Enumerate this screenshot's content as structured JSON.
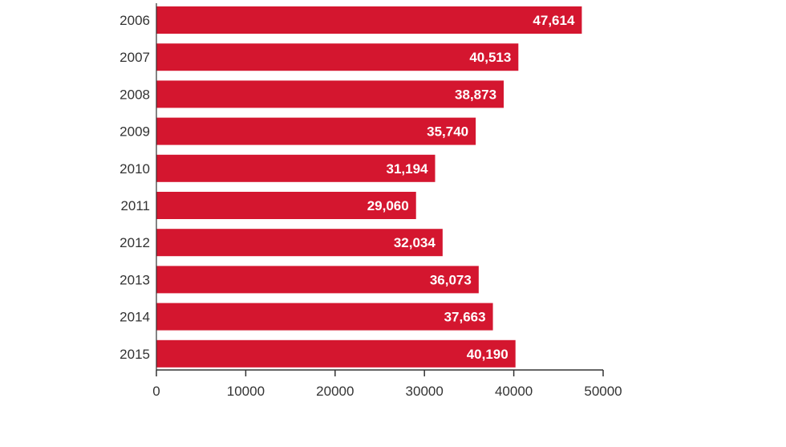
{
  "chart_data": {
    "type": "bar",
    "orientation": "horizontal",
    "title": "",
    "xlabel": "",
    "ylabel": "",
    "categories": [
      "2006",
      "2007",
      "2008",
      "2009",
      "2010",
      "2011",
      "2012",
      "2013",
      "2014",
      "2015"
    ],
    "values": [
      47614,
      40513,
      38873,
      35740,
      31194,
      29060,
      32034,
      36073,
      37663,
      40190
    ],
    "data_labels": [
      "47,614",
      "40,513",
      "38,873",
      "35,740",
      "31,194",
      "29,060",
      "32,034",
      "36,073",
      "37,663",
      "40,190"
    ],
    "xlim": [
      0,
      50000
    ],
    "x_ticks": [
      "0",
      "10000",
      "20000",
      "30000",
      "40000",
      "50000"
    ],
    "grid": false,
    "legend": "none",
    "bar_color": "#d4162f",
    "axis_color": "#333333"
  }
}
